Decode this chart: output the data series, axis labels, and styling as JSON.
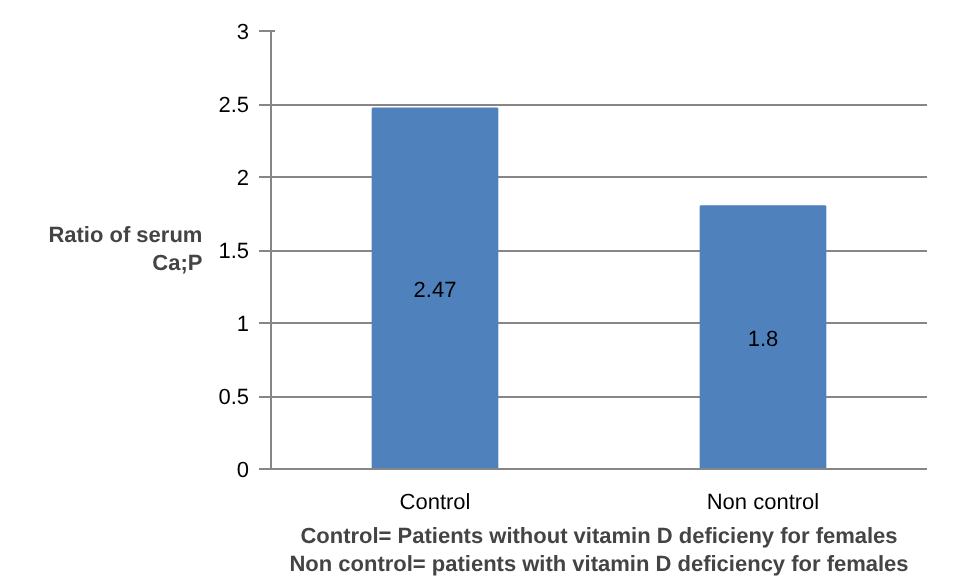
{
  "chart_data": {
    "type": "bar",
    "ylabel": "Ratio of serum Ca;P",
    "categories": [
      "Control",
      "Non control"
    ],
    "values": [
      2.47,
      1.8
    ],
    "color": "#4f81bd",
    "data_labels": true,
    "ylim": [
      0,
      3
    ],
    "yticks": [
      0,
      0.5,
      1,
      1.5,
      2,
      2.5,
      3
    ],
    "grid": "y",
    "annotations": [
      "Control= Patients without vitamin D deficieny for females",
      "Non control= patients with vitamin D deficiency for females"
    ]
  }
}
